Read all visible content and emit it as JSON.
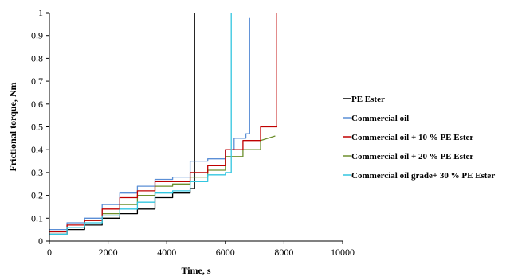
{
  "chart_data": {
    "type": "line",
    "xlabel": "Time, s",
    "ylabel": "Frictional torque, Nm",
    "xlim": [
      0,
      10000
    ],
    "ylim": [
      0,
      1
    ],
    "x_ticks": [
      "0",
      "2000",
      "4000",
      "6000",
      "8000",
      "10000"
    ],
    "y_ticks": [
      "0",
      "0.1",
      "0.2",
      "0.3",
      "0.4",
      "0.5",
      "0.6",
      "0.7",
      "0.8",
      "0.9",
      "1"
    ],
    "legend_position": "right",
    "series": [
      {
        "name": "PE Ester",
        "color": "#000000",
        "x": [
          0,
          600,
          600,
          1200,
          1200,
          1800,
          1800,
          2400,
          2400,
          3000,
          3000,
          3600,
          3600,
          4200,
          4200,
          4800,
          4800,
          4950,
          4950
        ],
        "y": [
          0.03,
          0.03,
          0.05,
          0.05,
          0.07,
          0.07,
          0.1,
          0.1,
          0.12,
          0.12,
          0.14,
          0.14,
          0.19,
          0.19,
          0.21,
          0.21,
          0.23,
          0.23,
          1.0
        ]
      },
      {
        "name": "Commercial  oil",
        "color": "#5b8fd6",
        "x": [
          0,
          600,
          600,
          1200,
          1200,
          1800,
          1800,
          2400,
          2400,
          3000,
          3000,
          3600,
          3600,
          4200,
          4200,
          4800,
          4800,
          5400,
          5400,
          6000,
          6000,
          6300,
          6300,
          6700,
          6700,
          6830,
          6830
        ],
        "y": [
          0.05,
          0.05,
          0.08,
          0.08,
          0.1,
          0.1,
          0.16,
          0.16,
          0.21,
          0.21,
          0.24,
          0.24,
          0.27,
          0.27,
          0.28,
          0.28,
          0.35,
          0.35,
          0.36,
          0.36,
          0.4,
          0.4,
          0.45,
          0.45,
          0.47,
          0.47,
          0.98
        ]
      },
      {
        "name": "Commercial oil  + 10 % PE Ester",
        "color": "#c00000",
        "x": [
          0,
          600,
          600,
          1200,
          1200,
          1800,
          1800,
          2400,
          2400,
          3000,
          3000,
          3600,
          3600,
          4200,
          4200,
          4800,
          4800,
          5400,
          5400,
          6000,
          6000,
          6600,
          6600,
          7200,
          7200,
          7750,
          7750
        ],
        "y": [
          0.04,
          0.04,
          0.07,
          0.07,
          0.09,
          0.09,
          0.14,
          0.14,
          0.19,
          0.19,
          0.22,
          0.22,
          0.26,
          0.26,
          0.26,
          0.26,
          0.3,
          0.3,
          0.33,
          0.33,
          0.4,
          0.4,
          0.44,
          0.44,
          0.5,
          0.5,
          1.0
        ]
      },
      {
        "name": "Commercial oil + 20 % PE Ester",
        "color": "#6d8f2e",
        "x": [
          0,
          600,
          600,
          1200,
          1200,
          1800,
          1800,
          2400,
          2400,
          3000,
          3000,
          3600,
          3600,
          4200,
          4200,
          4800,
          4800,
          5400,
          5400,
          6000,
          6000,
          6600,
          6600,
          7200,
          7200,
          7700
        ],
        "y": [
          0.04,
          0.04,
          0.06,
          0.06,
          0.09,
          0.09,
          0.12,
          0.12,
          0.16,
          0.16,
          0.2,
          0.2,
          0.24,
          0.24,
          0.25,
          0.25,
          0.28,
          0.28,
          0.31,
          0.31,
          0.37,
          0.37,
          0.4,
          0.4,
          0.44,
          0.46
        ]
      },
      {
        "name": "Commercial oil grade+ 30 % PE Ester",
        "color": "#33c6e0",
        "x": [
          0,
          600,
          600,
          1200,
          1200,
          1800,
          1800,
          2400,
          2400,
          3000,
          3000,
          3600,
          3600,
          4200,
          4200,
          4800,
          4800,
          5400,
          5400,
          6000,
          6000,
          6200,
          6200
        ],
        "y": [
          0.03,
          0.03,
          0.06,
          0.06,
          0.08,
          0.08,
          0.11,
          0.11,
          0.14,
          0.14,
          0.17,
          0.17,
          0.21,
          0.21,
          0.22,
          0.22,
          0.26,
          0.26,
          0.29,
          0.29,
          0.3,
          0.3,
          1.0
        ]
      }
    ]
  }
}
